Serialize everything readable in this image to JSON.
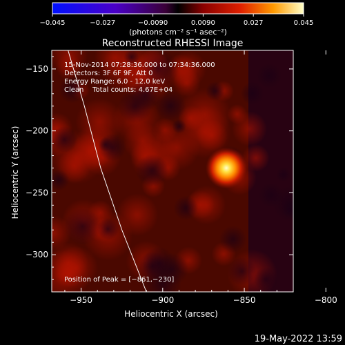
{
  "chart_data": {
    "type": "heatmap",
    "title": "Reconstructed RHESSI Image",
    "xlabel": "Heliocentric X (arcsec)",
    "ylabel": "Heliocentric Y (arcsec)",
    "xlim": [
      -968,
      -820
    ],
    "ylim": [
      -330,
      -135
    ],
    "x_ticks": [
      -950,
      -900,
      -850,
      -800
    ],
    "x_tick_labels": [
      "−950",
      "−900",
      "−850",
      "−800"
    ],
    "y_ticks": [
      -150,
      -200,
      -250,
      -300
    ],
    "y_tick_labels": [
      "−150",
      "−200",
      "−250",
      "−300"
    ],
    "colorbar": {
      "min": -0.045,
      "max": 0.045,
      "ticks": [
        -0.045,
        -0.027,
        -0.009,
        0.009,
        0.027,
        0.045
      ],
      "tick_labels": [
        "−0.045",
        "−0.027",
        "−0.0090",
        "0.0090",
        "0.027",
        "0.045"
      ],
      "units": "(photons cm⁻² s⁻¹ asec⁻²)"
    },
    "annotations": [
      "15-Nov-2014 07:28:36.000 to 07:34:36.000",
      "Detectors: 3F 6F 9F, Att 0",
      "Energy Range: 6.0 - 12.0 keV",
      "Clean    Total counts: 4.67E+04"
    ],
    "peak_label": "Position of Peak = [−861,−230]",
    "peak": {
      "x": -861,
      "y": -230,
      "value": 0.045
    },
    "limb_points": [
      [
        -958,
        -135
      ],
      [
        -948,
        -180
      ],
      [
        -938,
        -230
      ],
      [
        -925,
        -280
      ],
      [
        -910,
        -330
      ]
    ],
    "footer_date": "19-May-2022 13:59"
  }
}
